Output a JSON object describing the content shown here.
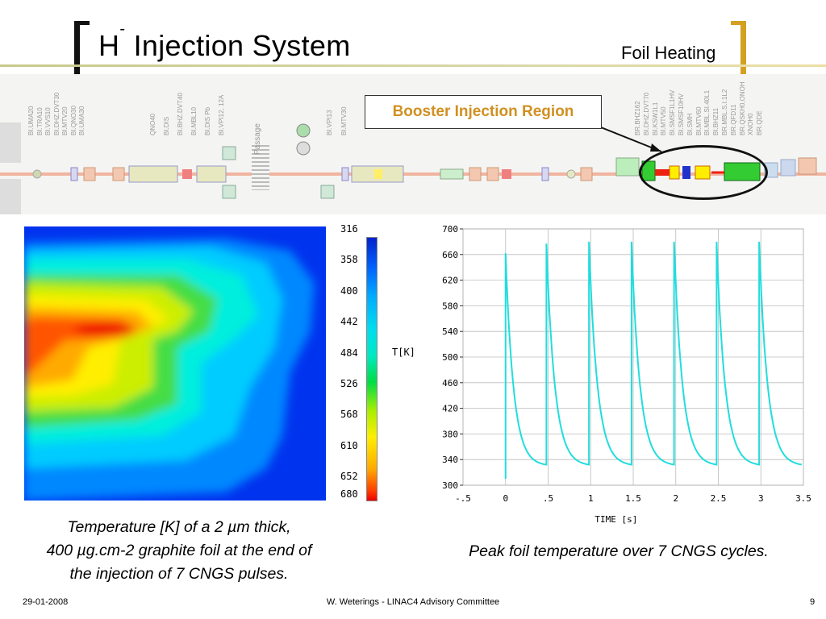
{
  "header": {
    "title_main": "H",
    "title_sup": "-",
    "title_rest": " Injection System",
    "subtitle": "Foil Heating"
  },
  "beamline": {
    "callout": "Booster Injection Region",
    "labels_left": [
      "BI.UMA20",
      "BI.TRA10",
      "BI.VVS10",
      "BI.DHZ.DVT30",
      "BI.MTV20",
      "BI.QNO30",
      "BI.UMA30",
      "QNO40",
      "BI.DIS",
      "BI.BHZ.DVT40",
      "BI.MBL10",
      "BI.DIS Pb",
      "BI.VPI12, 12A"
    ],
    "passage": "Passage",
    "labels_mid": [
      "BI.VPI13",
      "BI.MTV30"
    ],
    "labels_right": [
      "BR.BHZ162",
      "BI.DHZ.DVT70",
      "BI.KSW1L1",
      "BI.MTV50",
      "BI.SMSF1L1HV",
      "BI.SMSF10HV",
      "BI.SMH",
      "BI.MTV60",
      "BI.MBL.SI.40L1",
      "BI.BHZ11",
      "BR.MBL.S.I.1L2",
      "BR.QFD11",
      "BR.QSKH0,ONOH",
      "XNOH0",
      "BR.QDE"
    ]
  },
  "heatmap": {
    "scale_labels": [
      "316",
      "358",
      "400",
      "442",
      "484",
      "526",
      "568",
      "610",
      "652",
      "680"
    ],
    "unit_label": "T[K]",
    "caption_line1": "Temperature [K] of a 2 µm thick,",
    "caption_line2": "400 µg.cm-2 graphite foil at the end of",
    "caption_line3": "the injection of 7 CNGS pulses."
  },
  "chart_data": {
    "type": "line",
    "xlabel": "TIME [s]",
    "ylabel": "",
    "xlim": [
      -0.5,
      3.5
    ],
    "ylim": [
      300,
      700
    ],
    "x_ticks": [
      "-.5",
      "0",
      ".5",
      "1",
      "1.5",
      "2",
      "2.5",
      "3",
      "3.5"
    ],
    "x_tick_values": [
      -0.5,
      0,
      0.5,
      1,
      1.5,
      2,
      2.5,
      3,
      3.5
    ],
    "y_ticks": [
      300,
      340,
      380,
      420,
      460,
      500,
      540,
      580,
      620,
      660,
      700
    ],
    "series": [
      {
        "color": "#22dddd",
        "pulses": [
          {
            "t": 0.0,
            "peak": 662,
            "base": 310,
            "end": 330
          },
          {
            "t": 0.48,
            "peak": 677,
            "end": 330
          },
          {
            "t": 0.98,
            "peak": 680,
            "end": 330
          },
          {
            "t": 1.48,
            "peak": 680,
            "end": 330
          },
          {
            "t": 1.98,
            "peak": 680,
            "end": 330
          },
          {
            "t": 2.48,
            "peak": 680,
            "end": 330
          },
          {
            "t": 2.98,
            "peak": 680,
            "end": 330
          }
        ],
        "t_end": 3.48
      }
    ],
    "caption": "Peak foil temperature over 7 CNGS cycles."
  },
  "footer": {
    "date": "29-01-2008",
    "center": "W. Weterings - LINAC4 Advisory Committee",
    "page": "9"
  }
}
